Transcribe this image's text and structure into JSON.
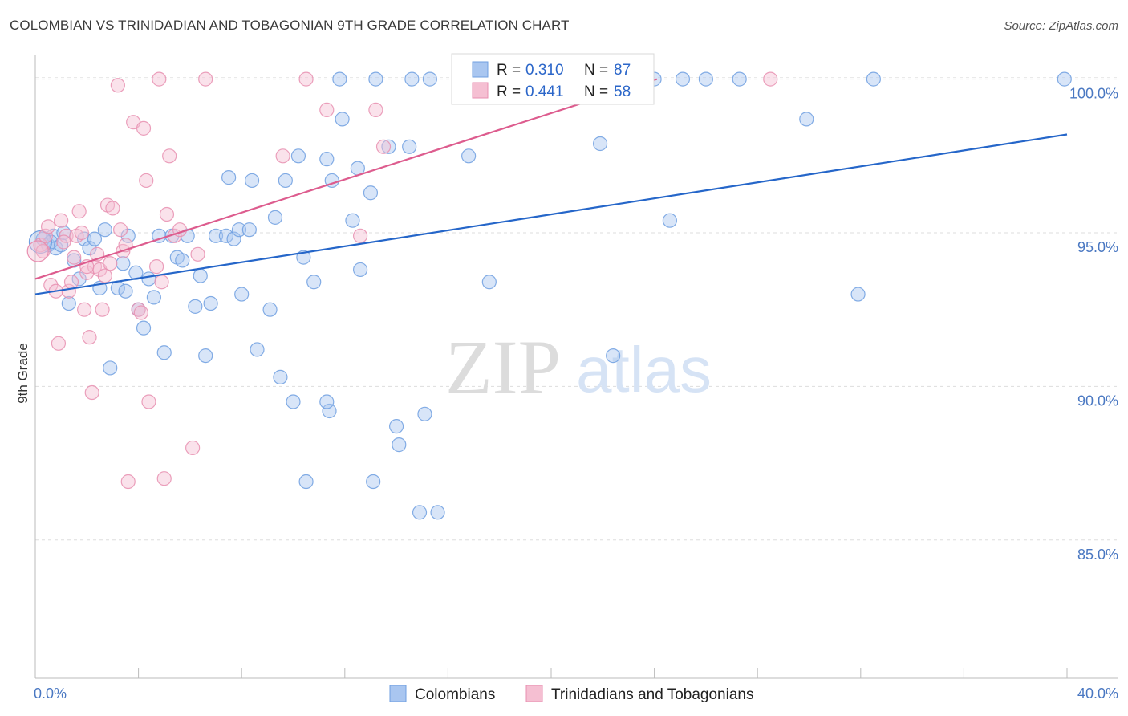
{
  "title": "COLOMBIAN VS TRINIDADIAN AND TOBAGONIAN 9TH GRADE CORRELATION CHART",
  "source": "Source: ZipAtlas.com",
  "watermark": {
    "zip": "ZIP",
    "atlas": "atlas"
  },
  "legend": {
    "r_label": "R =",
    "n_label": "N =",
    "series": [
      {
        "r": "0.310",
        "n": "87"
      },
      {
        "r": "0.441",
        "n": "58"
      }
    ]
  },
  "chart_data": {
    "type": "scatter",
    "title": "COLOMBIAN VS TRINIDADIAN AND TOBAGONIAN 9TH GRADE CORRELATION CHART",
    "xlabel": "",
    "ylabel": "9th Grade",
    "xlim": [
      0,
      40
    ],
    "ylim": [
      80.5,
      100.8
    ],
    "x_tick_labels": [
      "0.0%",
      "40.0%"
    ],
    "y_ticks": [
      85,
      90,
      95,
      100
    ],
    "y_tick_labels": [
      "85.0%",
      "90.0%",
      "95.0%",
      "100.0%"
    ],
    "series": [
      {
        "name": "Colombians",
        "color": "#6f9fe0",
        "fill": "#a9c6f0",
        "line_color": "#2566c9",
        "trend": {
          "x0": 0,
          "y0": 93.0,
          "x1": 40,
          "y1": 98.2
        },
        "points": [
          {
            "x": 0.3,
            "y": 94.8
          },
          {
            "x": 0.5,
            "y": 94.6
          },
          {
            "x": 0.7,
            "y": 94.9
          },
          {
            "x": 0.8,
            "y": 94.5
          },
          {
            "x": 0.6,
            "y": 94.7
          },
          {
            "x": 1.0,
            "y": 94.6
          },
          {
            "x": 1.1,
            "y": 95.0
          },
          {
            "x": 1.3,
            "y": 92.7
          },
          {
            "x": 1.5,
            "y": 94.1
          },
          {
            "x": 1.7,
            "y": 93.5
          },
          {
            "x": 1.9,
            "y": 94.8
          },
          {
            "x": 2.1,
            "y": 94.5
          },
          {
            "x": 2.3,
            "y": 94.8
          },
          {
            "x": 2.5,
            "y": 93.2
          },
          {
            "x": 2.7,
            "y": 95.1
          },
          {
            "x": 2.9,
            "y": 90.6
          },
          {
            "x": 3.2,
            "y": 93.2
          },
          {
            "x": 3.4,
            "y": 94.0
          },
          {
            "x": 3.5,
            "y": 93.1
          },
          {
            "x": 3.6,
            "y": 94.9
          },
          {
            "x": 3.9,
            "y": 93.7
          },
          {
            "x": 4.0,
            "y": 92.5
          },
          {
            "x": 4.2,
            "y": 91.9
          },
          {
            "x": 4.4,
            "y": 93.5
          },
          {
            "x": 4.6,
            "y": 92.9
          },
          {
            "x": 4.8,
            "y": 94.9
          },
          {
            "x": 5.0,
            "y": 91.1
          },
          {
            "x": 5.3,
            "y": 94.9
          },
          {
            "x": 5.5,
            "y": 94.2
          },
          {
            "x": 5.7,
            "y": 94.1
          },
          {
            "x": 5.9,
            "y": 94.9
          },
          {
            "x": 6.2,
            "y": 92.6
          },
          {
            "x": 6.4,
            "y": 93.6
          },
          {
            "x": 6.6,
            "y": 91.0
          },
          {
            "x": 6.8,
            "y": 92.7
          },
          {
            "x": 7.0,
            "y": 94.9
          },
          {
            "x": 7.4,
            "y": 94.9
          },
          {
            "x": 7.5,
            "y": 96.8
          },
          {
            "x": 7.7,
            "y": 94.8
          },
          {
            "x": 7.9,
            "y": 95.1
          },
          {
            "x": 8.0,
            "y": 93.0
          },
          {
            "x": 8.3,
            "y": 95.1
          },
          {
            "x": 8.4,
            "y": 96.7
          },
          {
            "x": 8.6,
            "y": 91.2
          },
          {
            "x": 9.1,
            "y": 92.5
          },
          {
            "x": 9.3,
            "y": 95.5
          },
          {
            "x": 9.5,
            "y": 90.3
          },
          {
            "x": 9.7,
            "y": 96.7
          },
          {
            "x": 10.0,
            "y": 89.5
          },
          {
            "x": 10.2,
            "y": 97.5
          },
          {
            "x": 10.4,
            "y": 94.2
          },
          {
            "x": 10.8,
            "y": 93.4
          },
          {
            "x": 10.5,
            "y": 86.9
          },
          {
            "x": 11.3,
            "y": 97.4
          },
          {
            "x": 11.4,
            "y": 89.2
          },
          {
            "x": 11.3,
            "y": 89.5
          },
          {
            "x": 11.5,
            "y": 96.7
          },
          {
            "x": 11.8,
            "y": 100.0
          },
          {
            "x": 11.9,
            "y": 98.7
          },
          {
            "x": 12.3,
            "y": 95.4
          },
          {
            "x": 12.5,
            "y": 97.1
          },
          {
            "x": 12.6,
            "y": 93.8
          },
          {
            "x": 13.0,
            "y": 96.3
          },
          {
            "x": 13.1,
            "y": 86.9
          },
          {
            "x": 13.2,
            "y": 100.0
          },
          {
            "x": 13.7,
            "y": 97.8
          },
          {
            "x": 14.0,
            "y": 88.7
          },
          {
            "x": 14.1,
            "y": 88.1
          },
          {
            "x": 14.5,
            "y": 97.8
          },
          {
            "x": 14.6,
            "y": 100.0
          },
          {
            "x": 14.9,
            "y": 85.9
          },
          {
            "x": 15.1,
            "y": 89.1
          },
          {
            "x": 15.3,
            "y": 100.0
          },
          {
            "x": 15.6,
            "y": 85.9
          },
          {
            "x": 16.8,
            "y": 97.5
          },
          {
            "x": 17.6,
            "y": 93.4
          },
          {
            "x": 21.9,
            "y": 97.9
          },
          {
            "x": 22.4,
            "y": 91.0
          },
          {
            "x": 24.0,
            "y": 100.0
          },
          {
            "x": 24.6,
            "y": 95.4
          },
          {
            "x": 25.1,
            "y": 100.0
          },
          {
            "x": 26.0,
            "y": 100.0
          },
          {
            "x": 27.3,
            "y": 100.0
          },
          {
            "x": 29.9,
            "y": 98.7
          },
          {
            "x": 31.9,
            "y": 93.0
          },
          {
            "x": 32.5,
            "y": 100.0
          },
          {
            "x": 39.9,
            "y": 100.0
          }
        ]
      },
      {
        "name": "Trinidadians and Tobagonians",
        "color": "#e88fb0",
        "fill": "#f5bfd2",
        "line_color": "#dd5c8e",
        "trend": {
          "x0": 0,
          "y0": 93.5,
          "x1": 24.1,
          "y1": 100.0
        },
        "points": [
          {
            "x": 0.2,
            "y": 94.6
          },
          {
            "x": 0.3,
            "y": 94.4
          },
          {
            "x": 0.4,
            "y": 94.9
          },
          {
            "x": 0.6,
            "y": 93.3
          },
          {
            "x": 0.8,
            "y": 93.1
          },
          {
            "x": 0.9,
            "y": 91.4
          },
          {
            "x": 1.0,
            "y": 95.4
          },
          {
            "x": 1.2,
            "y": 94.9
          },
          {
            "x": 1.3,
            "y": 93.1
          },
          {
            "x": 1.5,
            "y": 94.2
          },
          {
            "x": 1.6,
            "y": 94.9
          },
          {
            "x": 1.7,
            "y": 95.7
          },
          {
            "x": 1.8,
            "y": 95.0
          },
          {
            "x": 1.9,
            "y": 92.5
          },
          {
            "x": 2.0,
            "y": 93.7
          },
          {
            "x": 2.1,
            "y": 91.6
          },
          {
            "x": 2.2,
            "y": 89.8
          },
          {
            "x": 2.3,
            "y": 93.9
          },
          {
            "x": 2.4,
            "y": 94.3
          },
          {
            "x": 2.5,
            "y": 93.8
          },
          {
            "x": 2.6,
            "y": 92.5
          },
          {
            "x": 2.8,
            "y": 95.9
          },
          {
            "x": 2.9,
            "y": 94.0
          },
          {
            "x": 3.0,
            "y": 95.8
          },
          {
            "x": 3.2,
            "y": 99.8
          },
          {
            "x": 3.3,
            "y": 95.1
          },
          {
            "x": 3.4,
            "y": 94.4
          },
          {
            "x": 3.6,
            "y": 86.9
          },
          {
            "x": 3.8,
            "y": 98.6
          },
          {
            "x": 4.0,
            "y": 92.5
          },
          {
            "x": 4.2,
            "y": 98.4
          },
          {
            "x": 4.3,
            "y": 96.7
          },
          {
            "x": 4.4,
            "y": 89.5
          },
          {
            "x": 4.7,
            "y": 93.9
          },
          {
            "x": 4.8,
            "y": 100.0
          },
          {
            "x": 4.9,
            "y": 93.4
          },
          {
            "x": 5.0,
            "y": 87.0
          },
          {
            "x": 5.1,
            "y": 95.6
          },
          {
            "x": 5.2,
            "y": 97.5
          },
          {
            "x": 5.4,
            "y": 94.9
          },
          {
            "x": 5.6,
            "y": 95.1
          },
          {
            "x": 6.1,
            "y": 88.0
          },
          {
            "x": 6.3,
            "y": 94.3
          },
          {
            "x": 6.6,
            "y": 100.0
          },
          {
            "x": 9.6,
            "y": 97.5
          },
          {
            "x": 10.5,
            "y": 100.0
          },
          {
            "x": 11.3,
            "y": 99.0
          },
          {
            "x": 12.6,
            "y": 94.9
          },
          {
            "x": 13.2,
            "y": 99.0
          },
          {
            "x": 13.5,
            "y": 97.8
          },
          {
            "x": 28.5,
            "y": 100.0
          },
          {
            "x": 1.4,
            "y": 93.4
          },
          {
            "x": 2.7,
            "y": 93.6
          },
          {
            "x": 3.5,
            "y": 94.6
          },
          {
            "x": 0.5,
            "y": 95.2
          },
          {
            "x": 1.1,
            "y": 94.7
          },
          {
            "x": 4.1,
            "y": 92.4
          },
          {
            "x": 2.0,
            "y": 93.9
          }
        ]
      }
    ]
  },
  "bottom_legend": [
    "Colombians",
    "Trinidadians and Tobagonians"
  ]
}
